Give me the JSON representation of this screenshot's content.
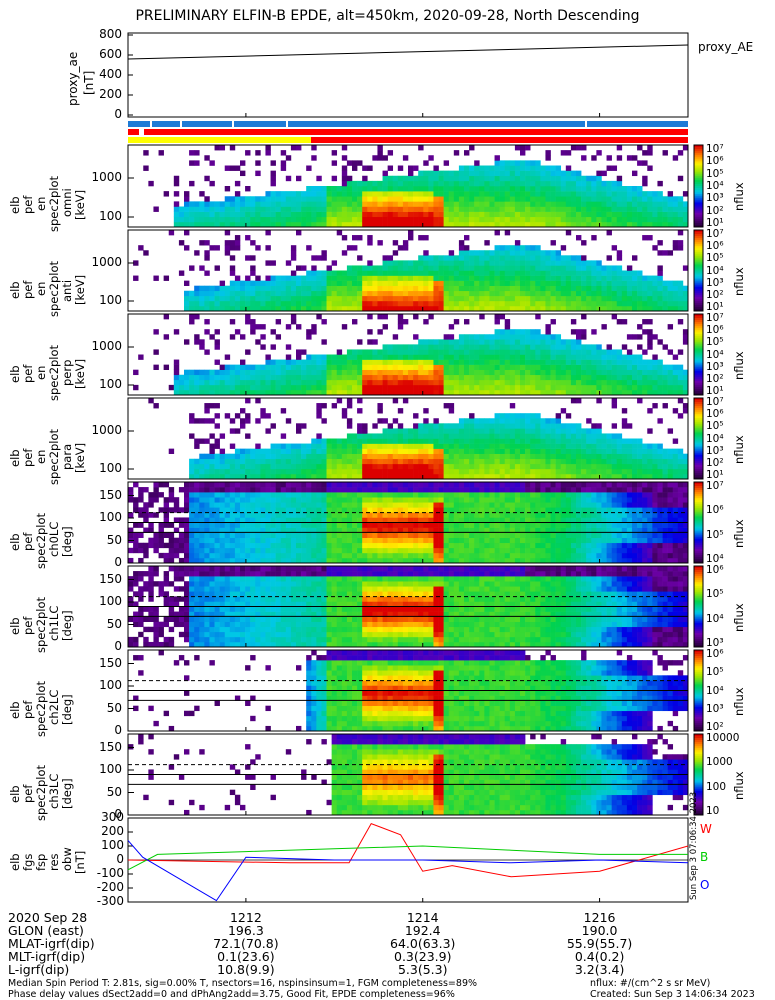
{
  "title": "PRELIMINARY ELFIN-B EPDE, alt=450km, 2020-09-28, North Descending",
  "colors": {
    "W": "#ff0000",
    "B": "#00cc00",
    "O": "#0000ff",
    "bar_blue": "#1e7bd6",
    "bar_red": "#ff0000",
    "bar_yellow": "#ffff00"
  },
  "panels": {
    "ae": {
      "ylabel": [
        "proxy_ae",
        "[nT]"
      ],
      "yticks": [
        "800",
        "600",
        "400",
        "200",
        "0"
      ],
      "legend": "proxy_AE"
    },
    "spec": [
      {
        "ylabel": [
          "elb",
          "pef",
          "en",
          "spec2plot",
          "omni",
          "[keV]"
        ],
        "yticks": [
          "1000",
          "100"
        ],
        "clabel": "nflux"
      },
      {
        "ylabel": [
          "elb",
          "pef",
          "en",
          "spec2plot",
          "anti",
          "[keV]"
        ],
        "yticks": [
          "1000",
          "100"
        ],
        "clabel": "nflux"
      },
      {
        "ylabel": [
          "elb",
          "pef",
          "en",
          "spec2plot",
          "perp",
          "[keV]"
        ],
        "yticks": [
          "1000",
          "100"
        ],
        "clabel": "nflux"
      },
      {
        "ylabel": [
          "elb",
          "pef",
          "en",
          "spec2plot",
          "para",
          "[keV]"
        ],
        "yticks": [
          "1000",
          "100"
        ],
        "clabel": "nflux"
      },
      {
        "ylabel": [
          "elb",
          "pef",
          "spec2plot",
          "ch0LC",
          "[deg]"
        ],
        "yticks": [
          "150",
          "100",
          "50",
          "0"
        ],
        "clabel": "nflux"
      },
      {
        "ylabel": [
          "elb",
          "pef",
          "spec2plot",
          "ch1LC",
          "[deg]"
        ],
        "yticks": [
          "150",
          "100",
          "50",
          "0"
        ],
        "clabel": "nflux"
      },
      {
        "ylabel": [
          "elb",
          "pef",
          "spec2plot",
          "ch2LC",
          "[deg]"
        ],
        "yticks": [
          "150",
          "100",
          "50",
          "0"
        ],
        "clabel": "nflux"
      },
      {
        "ylabel": [
          "elb",
          "pef",
          "spec2plot",
          "ch3LC",
          "[deg]"
        ],
        "yticks": [
          "150",
          "100",
          "50",
          "0"
        ],
        "clabel": "nflux"
      }
    ],
    "colorbars": [
      [
        "10⁷",
        "10⁶",
        "10⁵",
        "10⁴",
        "10³",
        "10²",
        "10¹"
      ],
      [
        "10⁷",
        "10⁶",
        "10⁵",
        "10⁴",
        "10³",
        "10²",
        "10¹"
      ],
      [
        "10⁷",
        "10⁶",
        "10⁵",
        "10⁴",
        "10³",
        "10²",
        "10¹"
      ],
      [
        "10⁷",
        "10⁶",
        "10⁵",
        "10⁴",
        "10³",
        "10²",
        "10¹"
      ],
      [
        "10⁷",
        "10⁶",
        "10⁵",
        "10⁴"
      ],
      [
        "10⁶",
        "10⁵",
        "10⁴",
        "10³"
      ],
      [
        "10⁶",
        "10⁵",
        "10⁴",
        "10³",
        "10²"
      ],
      [
        "10000",
        "1000",
        "100",
        "10"
      ]
    ],
    "bfield": {
      "ylabel": [
        "elb",
        "fgs",
        "fsp",
        "res",
        "obw",
        "[nT]"
      ],
      "yticks": [
        "300",
        "200",
        "100",
        "0",
        "-100",
        "-200",
        "-300"
      ],
      "legend": [
        "W",
        "B",
        "O"
      ]
    }
  },
  "side_text": "Sun Sep  3 07:06:34 2023",
  "footer": {
    "rows": [
      {
        "label": "2020 Sep 28",
        "v": [
          "1212",
          "1214",
          "1216"
        ]
      },
      {
        "label": "GLON (east)",
        "v": [
          "196.3",
          "192.4",
          "190.0"
        ]
      },
      {
        "label": "MLAT-igrf(dip)",
        "v": [
          "72.1(70.8)",
          "64.0(63.3)",
          "55.9(55.7)"
        ]
      },
      {
        "label": "MLT-igrf(dip)",
        "v": [
          "0.1(23.6)",
          "0.3(23.9)",
          "0.4(0.2)"
        ]
      },
      {
        "label": "L-igrf(dip)",
        "v": [
          "10.8(9.9)",
          "5.3(5.3)",
          "3.2(3.4)"
        ]
      }
    ],
    "note1": "Median Spin Period T: 2.81s, sig=0.00% T, nsectors=16, nspinsinsum=1, FGM completeness=89%",
    "note2": "Phase delay values dSect2add=0 and dPhAng2add=3.75, Good Fit, EPDE completeness=96%",
    "units": "nflux: #/(cm^2 s sr MeV)",
    "created": "Created: Sun Sep  3 14:06:34 2023"
  },
  "chart_data": [
    {
      "type": "line",
      "title": "PRELIMINARY ELFIN-B EPDE, alt=450km, 2020-09-28, North Descending",
      "ylabel": "proxy_ae [nT]",
      "ylim": [
        0,
        800
      ],
      "series": [
        {
          "name": "proxy_AE",
          "x": [
            "12:10:40",
            "12:17:00"
          ],
          "values": [
            560,
            700
          ]
        }
      ]
    },
    {
      "type": "heatmap",
      "panel": "omni",
      "ylabel": "elb pef en spec2plot omni [keV]",
      "yscale": "log",
      "zscale": "log",
      "zlim": [
        10,
        10000000
      ]
    },
    {
      "type": "heatmap",
      "panel": "anti",
      "ylabel": "elb pef en spec2plot anti [keV]",
      "yscale": "log",
      "zscale": "log",
      "zlim": [
        10,
        10000000
      ]
    },
    {
      "type": "heatmap",
      "panel": "perp",
      "ylabel": "elb pef en spec2plot perp [keV]",
      "yscale": "log",
      "zscale": "log",
      "zlim": [
        10,
        10000000
      ]
    },
    {
      "type": "heatmap",
      "panel": "para",
      "ylabel": "elb pef en spec2plot para [keV]",
      "yscale": "log",
      "zscale": "log",
      "zlim": [
        10,
        10000000
      ]
    },
    {
      "type": "heatmap",
      "panel": "ch0LC",
      "ylabel": "elb pef spec2plot ch0LC [deg]",
      "ylim": [
        0,
        180
      ],
      "zscale": "log",
      "zlim": [
        10000,
        10000000
      ]
    },
    {
      "type": "heatmap",
      "panel": "ch1LC",
      "ylabel": "elb pef spec2plot ch1LC [deg]",
      "ylim": [
        0,
        180
      ],
      "zscale": "log",
      "zlim": [
        1000,
        1000000
      ]
    },
    {
      "type": "heatmap",
      "panel": "ch2LC",
      "ylabel": "elb pef spec2plot ch2LC [deg]",
      "ylim": [
        0,
        180
      ],
      "zscale": "log",
      "zlim": [
        100,
        1000000
      ]
    },
    {
      "type": "heatmap",
      "panel": "ch3LC",
      "ylabel": "elb pef spec2plot ch3LC [deg]",
      "ylim": [
        0,
        180
      ],
      "zscale": "log",
      "zlim": [
        10,
        10000
      ]
    },
    {
      "type": "line",
      "ylabel": "elb fgs fsp res obw [nT]",
      "ylim": [
        -300,
        300
      ],
      "series": [
        {
          "name": "W",
          "x": [
            "12:10:40",
            "12:12:30",
            "12:13:10",
            "12:13:25",
            "12:13:45",
            "12:14:00",
            "12:14:20",
            "12:15:00",
            "12:16:00",
            "12:17:00"
          ],
          "values": [
            0,
            -20,
            -20,
            260,
            180,
            -80,
            -40,
            -120,
            -80,
            100
          ]
        },
        {
          "name": "B",
          "x": [
            "12:10:40",
            "12:11:00",
            "12:12:00",
            "12:13:00",
            "12:14:00",
            "12:15:00",
            "12:16:00",
            "12:17:00"
          ],
          "values": [
            -70,
            40,
            60,
            80,
            100,
            70,
            40,
            40
          ]
        },
        {
          "name": "O",
          "x": [
            "12:10:40",
            "12:10:50",
            "12:11:40",
            "12:12:00",
            "12:13:00",
            "12:14:00",
            "12:15:00",
            "12:16:00",
            "12:17:00"
          ],
          "values": [
            140,
            20,
            -290,
            20,
            0,
            0,
            -20,
            0,
            -20
          ]
        }
      ]
    }
  ]
}
